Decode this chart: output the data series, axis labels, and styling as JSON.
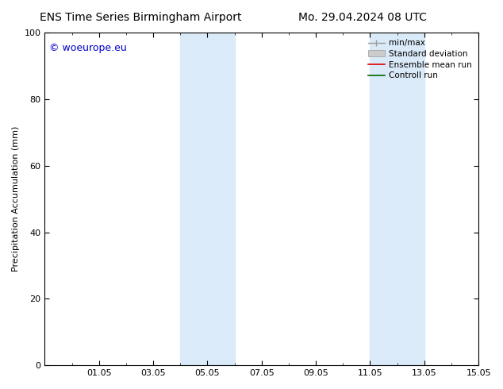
{
  "title_left": "ENS Time Series Birmingham Airport",
  "title_right": "Mo. 29.04.2024 08 UTC",
  "ylabel": "Precipitation Accumulation (mm)",
  "ylim": [
    0,
    100
  ],
  "yticks": [
    0,
    20,
    40,
    60,
    80,
    100
  ],
  "xlim": [
    0,
    16
  ],
  "xtick_labels": [
    "01.05",
    "03.05",
    "05.05",
    "07.05",
    "09.05",
    "11.05",
    "13.05",
    "15.05"
  ],
  "xtick_positions": [
    2,
    4,
    6,
    8,
    10,
    12,
    14,
    16
  ],
  "shaded_regions": [
    {
      "xstart": 5.0,
      "xend": 7.0
    },
    {
      "xstart": 12.0,
      "xend": 14.0
    }
  ],
  "shaded_color": "#daeaf8",
  "watermark_text": "© woeurope.eu",
  "watermark_color": "#0000cc",
  "background_color": "#ffffff",
  "spine_color": "#000000",
  "title_fontsize": 10,
  "axis_label_fontsize": 8,
  "tick_fontsize": 8,
  "watermark_fontsize": 9,
  "legend_fontsize": 7.5
}
